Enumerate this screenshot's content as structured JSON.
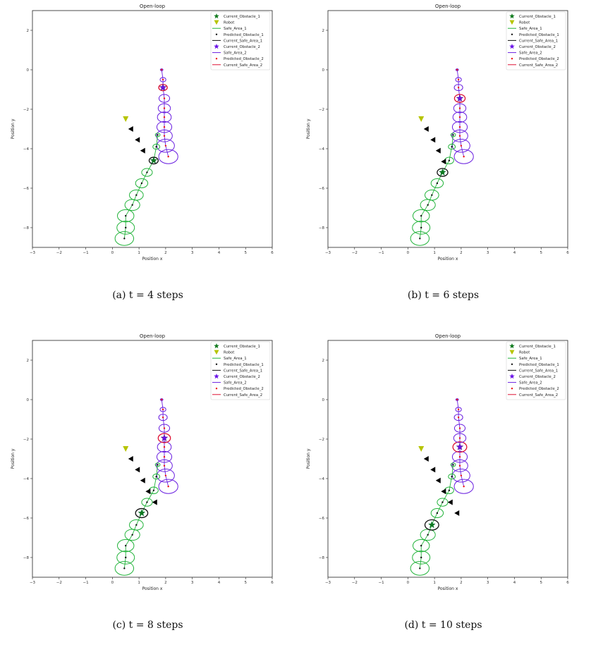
{
  "figure": {
    "panels": [
      {
        "caption": "(a) t = 4 steps"
      },
      {
        "caption": "(b) t = 6 steps"
      },
      {
        "caption": "(c) t = 8 steps"
      },
      {
        "caption": "(d) t = 10 steps"
      }
    ]
  },
  "colors": {
    "obstacle1": "#1a8a1a",
    "obstacle1_star": "#0f7a1e",
    "safe_area_1": "#22b33a",
    "robot": "#b6c400",
    "predicted1": "#111111",
    "current_safe_1": "#111111",
    "obstacle2_star": "#6a12e8",
    "safe_area_2": "#6a1fe0",
    "predicted2": "#ee1111",
    "current_safe_2": "#dd1133",
    "robot_marker": "#000000"
  },
  "chart_data": [
    {
      "type": "scatter",
      "title": "Open-loop",
      "xlabel": "Position x",
      "ylabel": "Position y",
      "xlim": [
        -3,
        6
      ],
      "ylim": [
        -9,
        3
      ],
      "xticks": [
        -3,
        -2,
        -1,
        0,
        1,
        2,
        3,
        4,
        5,
        6
      ],
      "yticks": [
        2,
        0,
        -2,
        -4,
        -6,
        -8
      ],
      "legend_position": "top-right",
      "legend": [
        "Current_Obstacle_1",
        "Robot",
        "Safe_Area_1",
        "Predicted_Obstacle_1",
        "Current_Safe_Area_1",
        "Current_Obstacle_2",
        "Safe_Area_2",
        "Predicted_Obstacle_2",
        "Current_Safe_Area_2"
      ],
      "robot_start": {
        "x": 0.5,
        "y": -2.5
      },
      "robot_path": [
        {
          "x": 0.7,
          "y": -3.0
        },
        {
          "x": 0.95,
          "y": -3.55
        },
        {
          "x": 1.15,
          "y": -4.1
        }
      ],
      "obstacle1_predicted": [
        [
          0.45,
          -8.55
        ],
        [
          0.5,
          -8.0
        ],
        [
          0.5,
          -7.4
        ],
        [
          0.75,
          -6.85
        ],
        [
          0.9,
          -6.35
        ],
        [
          1.1,
          -5.75
        ],
        [
          1.3,
          -5.2
        ],
        [
          1.55,
          -4.6
        ],
        [
          1.65,
          -3.9
        ],
        [
          1.7,
          -3.3
        ]
      ],
      "obstacle1_radii": [
        0.35,
        0.33,
        0.31,
        0.28,
        0.26,
        0.23,
        0.2,
        0.17,
        0.13,
        0.09
      ],
      "obstacle1_current": {
        "x": 1.55,
        "y": -4.6
      },
      "obstacle2_predicted": [
        [
          2.1,
          -4.4
        ],
        [
          2.0,
          -3.85
        ],
        [
          1.95,
          -3.35
        ],
        [
          1.95,
          -2.9
        ],
        [
          1.95,
          -2.4
        ],
        [
          1.95,
          -1.95
        ],
        [
          1.95,
          -1.45
        ],
        [
          1.9,
          -0.9
        ],
        [
          1.9,
          -0.5
        ],
        [
          1.85,
          0.0
        ]
      ],
      "obstacle2_radii": [
        0.36,
        0.33,
        0.3,
        0.28,
        0.26,
        0.23,
        0.2,
        0.16,
        0.11,
        0.05
      ],
      "obstacle2_current": {
        "x": 1.9,
        "y": -0.9
      }
    },
    {
      "type": "scatter",
      "title": "Open-loop",
      "xlabel": "Position x",
      "ylabel": "Position y",
      "xlim": [
        -3,
        6
      ],
      "ylim": [
        -9,
        3
      ],
      "xticks": [
        -3,
        -2,
        -1,
        0,
        1,
        2,
        3,
        4,
        5,
        6
      ],
      "yticks": [
        2,
        0,
        -2,
        -4,
        -6,
        -8
      ],
      "legend_position": "top-right",
      "legend": [
        "Current_Obstacle_1",
        "Robot",
        "Safe_Area_1",
        "Predicted_Obstacle_1",
        "Current_Safe_Area_1",
        "Current_Obstacle_2",
        "Safe_Area_2",
        "Predicted_Obstacle_2",
        "Current_Safe_Area_2"
      ],
      "robot_start": {
        "x": 0.5,
        "y": -2.5
      },
      "robot_path": [
        {
          "x": 0.7,
          "y": -3.0
        },
        {
          "x": 0.95,
          "y": -3.55
        },
        {
          "x": 1.15,
          "y": -4.1
        },
        {
          "x": 1.35,
          "y": -4.65
        }
      ],
      "obstacle1_predicted": [
        [
          0.45,
          -8.55
        ],
        [
          0.5,
          -8.0
        ],
        [
          0.5,
          -7.4
        ],
        [
          0.75,
          -6.85
        ],
        [
          0.9,
          -6.35
        ],
        [
          1.1,
          -5.75
        ],
        [
          1.3,
          -5.2
        ],
        [
          1.55,
          -4.6
        ],
        [
          1.65,
          -3.9
        ],
        [
          1.7,
          -3.3
        ]
      ],
      "obstacle1_radii": [
        0.35,
        0.33,
        0.31,
        0.28,
        0.26,
        0.23,
        0.2,
        0.17,
        0.13,
        0.09
      ],
      "obstacle1_current": {
        "x": 1.3,
        "y": -5.2
      },
      "obstacle2_predicted": [
        [
          2.1,
          -4.4
        ],
        [
          2.0,
          -3.85
        ],
        [
          1.95,
          -3.35
        ],
        [
          1.95,
          -2.9
        ],
        [
          1.95,
          -2.4
        ],
        [
          1.95,
          -1.95
        ],
        [
          1.95,
          -1.45
        ],
        [
          1.9,
          -0.9
        ],
        [
          1.9,
          -0.5
        ],
        [
          1.85,
          0.0
        ]
      ],
      "obstacle2_radii": [
        0.36,
        0.33,
        0.3,
        0.28,
        0.26,
        0.23,
        0.2,
        0.16,
        0.11,
        0.05
      ],
      "obstacle2_current": {
        "x": 1.95,
        "y": -1.45
      }
    },
    {
      "type": "scatter",
      "title": "Open-loop",
      "xlabel": "Position x",
      "ylabel": "Position y",
      "xlim": [
        -3,
        6
      ],
      "ylim": [
        -9,
        3
      ],
      "xticks": [
        -3,
        -2,
        -1,
        0,
        1,
        2,
        3,
        4,
        5,
        6
      ],
      "yticks": [
        2,
        0,
        -2,
        -4,
        -6,
        -8
      ],
      "legend_position": "top-right",
      "legend": [
        "Current_Obstacle_1",
        "Robot",
        "Safe_Area_1",
        "Predicted_Obstacle_1",
        "Current_Safe_Area_1",
        "Current_Obstacle_2",
        "Safe_Area_2",
        "Predicted_Obstacle_2",
        "Current_Safe_Area_2"
      ],
      "robot_start": {
        "x": 0.5,
        "y": -2.5
      },
      "robot_path": [
        {
          "x": 0.7,
          "y": -3.0
        },
        {
          "x": 0.95,
          "y": -3.55
        },
        {
          "x": 1.15,
          "y": -4.1
        },
        {
          "x": 1.35,
          "y": -4.65
        },
        {
          "x": 1.6,
          "y": -5.2
        }
      ],
      "obstacle1_predicted": [
        [
          0.45,
          -8.55
        ],
        [
          0.5,
          -8.0
        ],
        [
          0.5,
          -7.4
        ],
        [
          0.75,
          -6.85
        ],
        [
          0.9,
          -6.35
        ],
        [
          1.1,
          -5.75
        ],
        [
          1.3,
          -5.2
        ],
        [
          1.55,
          -4.6
        ],
        [
          1.65,
          -3.9
        ],
        [
          1.7,
          -3.3
        ]
      ],
      "obstacle1_radii": [
        0.35,
        0.33,
        0.31,
        0.28,
        0.26,
        0.23,
        0.2,
        0.17,
        0.13,
        0.09
      ],
      "obstacle1_current": {
        "x": 1.1,
        "y": -5.75
      },
      "obstacle2_predicted": [
        [
          2.1,
          -4.4
        ],
        [
          2.0,
          -3.85
        ],
        [
          1.95,
          -3.35
        ],
        [
          1.95,
          -2.9
        ],
        [
          1.95,
          -2.4
        ],
        [
          1.95,
          -1.95
        ],
        [
          1.95,
          -1.45
        ],
        [
          1.9,
          -0.9
        ],
        [
          1.9,
          -0.5
        ],
        [
          1.85,
          0.0
        ]
      ],
      "obstacle2_radii": [
        0.36,
        0.33,
        0.3,
        0.28,
        0.26,
        0.23,
        0.2,
        0.16,
        0.11,
        0.05
      ],
      "obstacle2_current": {
        "x": 1.95,
        "y": -1.95
      }
    },
    {
      "type": "scatter",
      "title": "Open-loop",
      "xlabel": "Position x",
      "ylabel": "Position y",
      "xlim": [
        -3,
        6
      ],
      "ylim": [
        -9,
        3
      ],
      "xticks": [
        -3,
        -2,
        -1,
        0,
        1,
        2,
        3,
        4,
        5,
        6
      ],
      "yticks": [
        2,
        0,
        -2,
        -4,
        -6,
        -8
      ],
      "legend_position": "top-right",
      "legend": [
        "Current_Obstacle_1",
        "Robot",
        "Safe_Area_1",
        "Predicted_Obstacle_1",
        "Current_Safe_Area_1",
        "Current_Obstacle_2",
        "Safe_Area_2",
        "Predicted_Obstacle_2",
        "Current_Safe_Area_2"
      ],
      "robot_start": {
        "x": 0.5,
        "y": -2.5
      },
      "robot_path": [
        {
          "x": 0.7,
          "y": -3.0
        },
        {
          "x": 0.95,
          "y": -3.55
        },
        {
          "x": 1.15,
          "y": -4.1
        },
        {
          "x": 1.35,
          "y": -4.65
        },
        {
          "x": 1.6,
          "y": -5.2
        },
        {
          "x": 1.85,
          "y": -5.75
        }
      ],
      "obstacle1_predicted": [
        [
          0.45,
          -8.55
        ],
        [
          0.5,
          -8.0
        ],
        [
          0.5,
          -7.4
        ],
        [
          0.75,
          -6.85
        ],
        [
          0.9,
          -6.35
        ],
        [
          1.1,
          -5.75
        ],
        [
          1.3,
          -5.2
        ],
        [
          1.55,
          -4.6
        ],
        [
          1.65,
          -3.9
        ],
        [
          1.7,
          -3.3
        ]
      ],
      "obstacle1_radii": [
        0.35,
        0.33,
        0.31,
        0.28,
        0.26,
        0.23,
        0.2,
        0.17,
        0.13,
        0.09
      ],
      "obstacle1_current": {
        "x": 0.9,
        "y": -6.35
      },
      "obstacle2_predicted": [
        [
          2.1,
          -4.4
        ],
        [
          2.0,
          -3.85
        ],
        [
          1.95,
          -3.35
        ],
        [
          1.95,
          -2.9
        ],
        [
          1.95,
          -2.4
        ],
        [
          1.95,
          -1.95
        ],
        [
          1.95,
          -1.45
        ],
        [
          1.9,
          -0.9
        ],
        [
          1.9,
          -0.5
        ],
        [
          1.85,
          0.0
        ]
      ],
      "obstacle2_radii": [
        0.36,
        0.33,
        0.3,
        0.28,
        0.26,
        0.23,
        0.2,
        0.16,
        0.11,
        0.05
      ],
      "obstacle2_current": {
        "x": 1.95,
        "y": -2.4
      }
    }
  ]
}
